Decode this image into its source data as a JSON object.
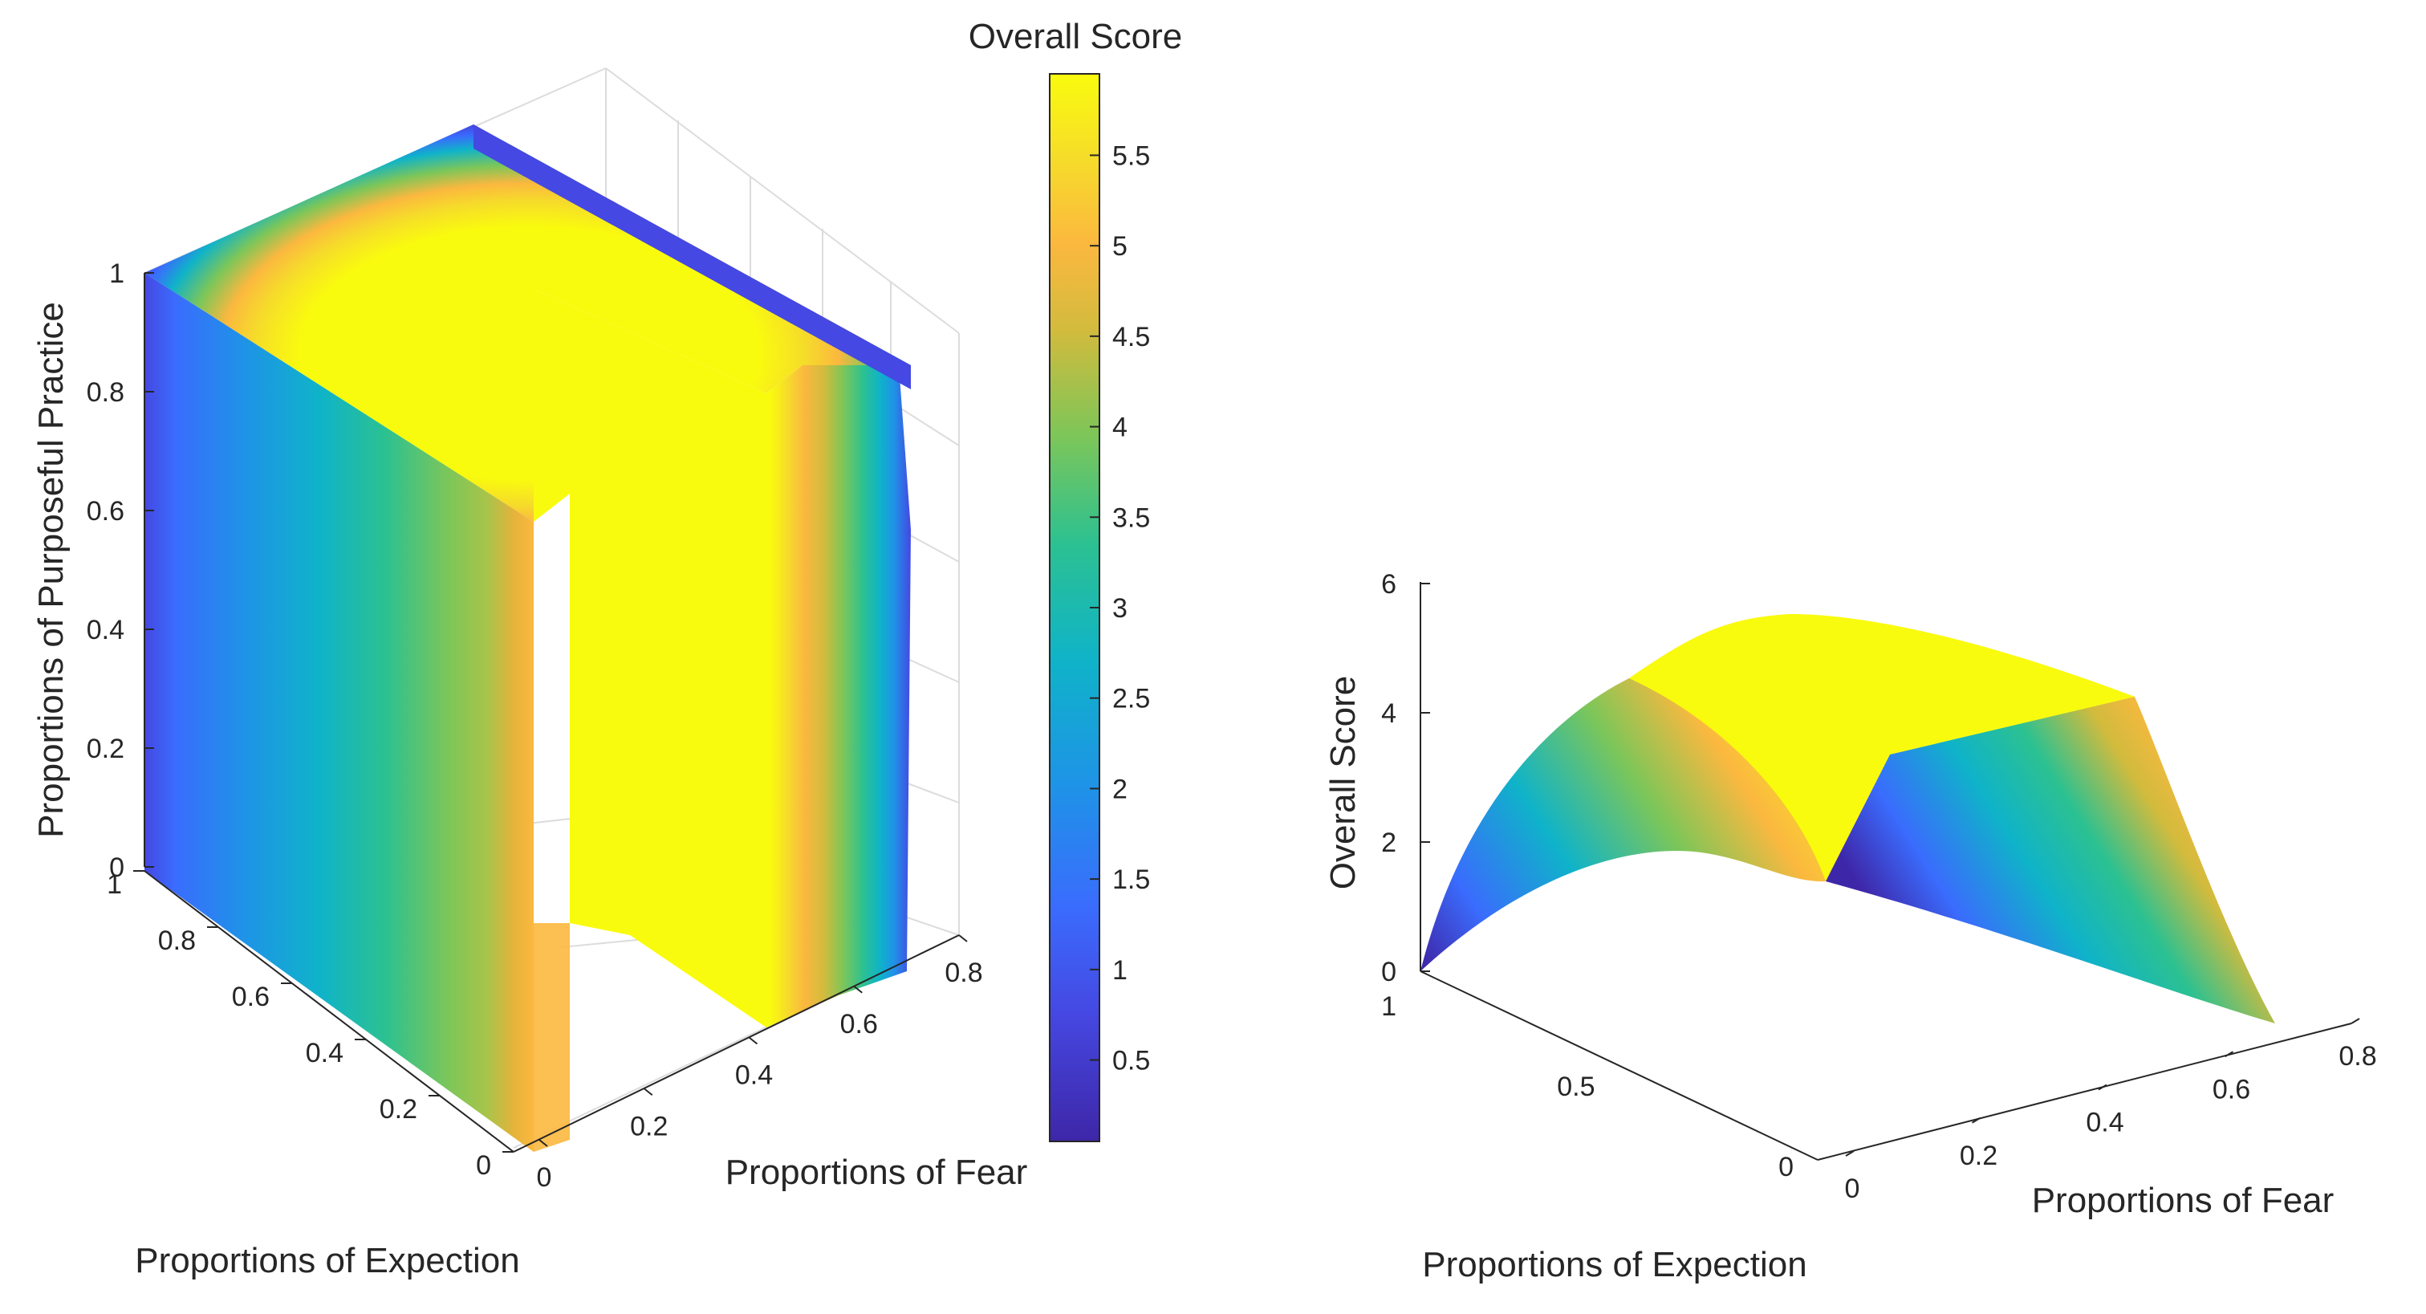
{
  "chart_data": [
    {
      "type": "volumetric-slice",
      "title": "",
      "xlabel": "Proportions of Expection",
      "ylabel": "Proportions of Fear",
      "zlabel": "Proportions of Purposeful Practice",
      "x_ticks": [
        "0",
        "0.2",
        "0.4",
        "0.6",
        "0.8",
        "1"
      ],
      "y_ticks": [
        "0",
        "0.2",
        "0.4",
        "0.6",
        "0.8"
      ],
      "z_ticks": [
        "0",
        "0.2",
        "0.4",
        "0.6",
        "0.8",
        "1"
      ],
      "xlim": [
        0,
        1
      ],
      "ylim": [
        0,
        0.8
      ],
      "zlim": [
        0,
        1
      ],
      "colorbar": {
        "title": "Overall Score",
        "ticks": [
          "0.5",
          "1",
          "1.5",
          "2",
          "2.5",
          "3",
          "3.5",
          "4",
          "4.5",
          "5",
          "5.5"
        ],
        "range": [
          0.05,
          5.95
        ],
        "colormap": "parula"
      },
      "grid": true
    },
    {
      "type": "surface",
      "title": "",
      "xlabel": "Proportions of Expection",
      "ylabel": "Proportions of Fear",
      "zlabel": "Overall Score",
      "x_ticks": [
        "0",
        "0.5",
        "1"
      ],
      "y_ticks": [
        "0",
        "0.2",
        "0.4",
        "0.6",
        "0.8"
      ],
      "z_ticks": [
        "0",
        "2",
        "4",
        "6"
      ],
      "xlim": [
        0,
        1
      ],
      "ylim": [
        0,
        0.8
      ],
      "zlim": [
        0,
        6
      ],
      "peak_value": 5.9,
      "grid": false
    }
  ]
}
